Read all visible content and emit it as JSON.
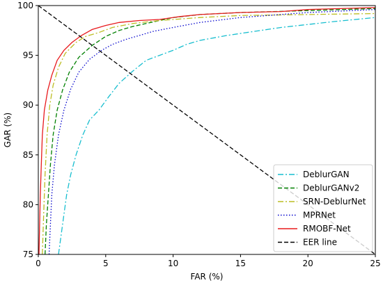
{
  "chart_data": {
    "type": "line",
    "xlabel": "FAR (%)",
    "ylabel": "GAR (%)",
    "xlim": [
      0,
      25
    ],
    "ylim": [
      75,
      100
    ],
    "x_ticks": [
      0,
      5,
      10,
      15,
      20,
      25
    ],
    "y_ticks": [
      75,
      80,
      85,
      90,
      95,
      100
    ],
    "grid": false,
    "legend_position": "lower-right",
    "series": [
      {
        "name": "DeblurGAN",
        "color": "#17becf",
        "dash": "dashdot",
        "points": [
          [
            1.5,
            75
          ],
          [
            1.7,
            77
          ],
          [
            1.9,
            79
          ],
          [
            2.1,
            81
          ],
          [
            2.4,
            83
          ],
          [
            2.8,
            85
          ],
          [
            3.3,
            87
          ],
          [
            3.8,
            88.5
          ],
          [
            4.5,
            89.5
          ],
          [
            5.2,
            90.8
          ],
          [
            6.0,
            92.2
          ],
          [
            7.0,
            93.4
          ],
          [
            8.0,
            94.5
          ],
          [
            9.0,
            95.0
          ],
          [
            10.0,
            95.5
          ],
          [
            11.0,
            96.1
          ],
          [
            12.0,
            96.5
          ],
          [
            14.0,
            97.0
          ],
          [
            16.0,
            97.4
          ],
          [
            18.0,
            97.8
          ],
          [
            20.0,
            98.1
          ],
          [
            22.0,
            98.4
          ],
          [
            25.0,
            98.8
          ]
        ]
      },
      {
        "name": "DeblurGANv2",
        "color": "#008000",
        "dash": "dashed",
        "points": [
          [
            0.5,
            75
          ],
          [
            0.6,
            78
          ],
          [
            0.75,
            81
          ],
          [
            0.9,
            84
          ],
          [
            1.1,
            87
          ],
          [
            1.4,
            89.5
          ],
          [
            1.8,
            91.5
          ],
          [
            2.3,
            93.3
          ],
          [
            3.0,
            94.8
          ],
          [
            4.0,
            96.0
          ],
          [
            5.0,
            96.9
          ],
          [
            6.0,
            97.5
          ],
          [
            7.0,
            97.9
          ],
          [
            8.0,
            98.2
          ],
          [
            10.0,
            98.8
          ],
          [
            12.0,
            99.1
          ],
          [
            15.0,
            99.3
          ],
          [
            20.0,
            99.5
          ],
          [
            25.0,
            99.7
          ]
        ]
      },
      {
        "name": "SRN-DeblurNet",
        "color": "#bcbd22",
        "dash": "dashdot",
        "points": [
          [
            0.3,
            75
          ],
          [
            0.4,
            79
          ],
          [
            0.5,
            83
          ],
          [
            0.65,
            87
          ],
          [
            0.85,
            90
          ],
          [
            1.1,
            92
          ],
          [
            1.5,
            93.8
          ],
          [
            2.0,
            95.2
          ],
          [
            2.8,
            96.3
          ],
          [
            3.5,
            96.9
          ],
          [
            4.5,
            97.3
          ],
          [
            5.5,
            97.8
          ],
          [
            7.0,
            98.2
          ],
          [
            9.0,
            98.5
          ],
          [
            12.0,
            98.8
          ],
          [
            15.0,
            99.0
          ],
          [
            20.0,
            99.1
          ],
          [
            25.0,
            99.2
          ]
        ]
      },
      {
        "name": "MPRNet",
        "color": "#0000cc",
        "dash": "dotted",
        "points": [
          [
            0.8,
            75
          ],
          [
            0.9,
            78
          ],
          [
            1.0,
            81
          ],
          [
            1.2,
            84
          ],
          [
            1.5,
            87
          ],
          [
            1.9,
            89.5
          ],
          [
            2.4,
            91.6
          ],
          [
            3.0,
            93.3
          ],
          [
            3.8,
            94.6
          ],
          [
            4.7,
            95.5
          ],
          [
            5.5,
            96.1
          ],
          [
            6.5,
            96.6
          ],
          [
            7.5,
            97.0
          ],
          [
            8.5,
            97.4
          ],
          [
            10.0,
            97.8
          ],
          [
            12.0,
            98.3
          ],
          [
            15.0,
            98.8
          ],
          [
            20.0,
            99.3
          ],
          [
            25.0,
            99.6
          ]
        ]
      },
      {
        "name": "RMOBF-Net",
        "color": "#e8191c",
        "dash": "solid",
        "points": [
          [
            0.05,
            75
          ],
          [
            0.1,
            78
          ],
          [
            0.15,
            81
          ],
          [
            0.22,
            84
          ],
          [
            0.3,
            87
          ],
          [
            0.45,
            89.5
          ],
          [
            0.7,
            91.5
          ],
          [
            1.0,
            93
          ],
          [
            1.4,
            94.5
          ],
          [
            1.9,
            95.5
          ],
          [
            2.5,
            96.3
          ],
          [
            3.2,
            97.0
          ],
          [
            4.0,
            97.6
          ],
          [
            5.0,
            98.0
          ],
          [
            6.0,
            98.3
          ],
          [
            7.5,
            98.5
          ],
          [
            9.0,
            98.6
          ],
          [
            10.5,
            98.9
          ],
          [
            12.0,
            99.1
          ],
          [
            15.0,
            99.3
          ],
          [
            18.0,
            99.4
          ],
          [
            20.0,
            99.6
          ],
          [
            25.0,
            99.8
          ]
        ]
      },
      {
        "name": "EER line",
        "color": "#000000",
        "dash": "dashed",
        "points": [
          [
            0,
            100
          ],
          [
            25,
            75
          ]
        ]
      }
    ]
  }
}
